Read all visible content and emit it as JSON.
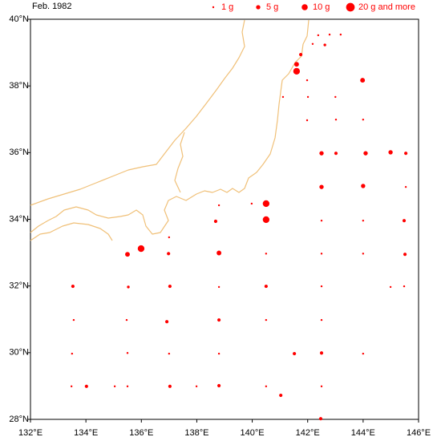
{
  "chart_data": {
    "type": "bubble-map",
    "title": "Feb. 1982",
    "color": "#ff0000",
    "legend": [
      {
        "value": 1,
        "label": "1 g"
      },
      {
        "value": 5,
        "label": "5 g"
      },
      {
        "value": 10,
        "label": "10 g"
      },
      {
        "value": 20,
        "label": "20 g and more"
      }
    ],
    "xlim": [
      132,
      146
    ],
    "ylim": [
      28,
      40
    ],
    "xticks": [
      {
        "value": 132,
        "label": "132°E"
      },
      {
        "value": 134,
        "label": "134°E"
      },
      {
        "value": 136,
        "label": "136°E"
      },
      {
        "value": 138,
        "label": "138°E"
      },
      {
        "value": 140,
        "label": "140°E"
      },
      {
        "value": 142,
        "label": "142°E"
      },
      {
        "value": 144,
        "label": "144°E"
      },
      {
        "value": 146,
        "label": "146°E"
      }
    ],
    "yticks": [
      {
        "value": 28,
        "label": "28°N"
      },
      {
        "value": 30,
        "label": "30°N"
      },
      {
        "value": 32,
        "label": "32°N"
      },
      {
        "value": 34,
        "label": "34°N"
      },
      {
        "value": 36,
        "label": "36°N"
      },
      {
        "value": 38,
        "label": "38°N"
      },
      {
        "value": 40,
        "label": "40°N"
      }
    ],
    "x": [
      142.18,
      142.38,
      142.62,
      142.79,
      143.19,
      141.6,
      141.75,
      141.6,
      143.98,
      141.98,
      141.11,
      142.01,
      143.0,
      141.98,
      143.02,
      144.0,
      142.5,
      143.02,
      144.09,
      144.99,
      145.54,
      142.5,
      144.0,
      145.54,
      138.8,
      139.98,
      140.5,
      138.68,
      140.5,
      142.5,
      144.0,
      145.48,
      137.0,
      135.5,
      135.99,
      136.98,
      138.8,
      140.5,
      142.5,
      144.0,
      145.51,
      133.53,
      135.53,
      137.03,
      138.8,
      140.5,
      142.5,
      144.99,
      145.48,
      133.56,
      135.47,
      136.92,
      138.8,
      140.5,
      142.5,
      133.5,
      135.5,
      137.0,
      138.8,
      141.52,
      142.5,
      144.0,
      133.48,
      134.02,
      135.04,
      135.5,
      137.03,
      137.99,
      138.8,
      140.5,
      142.5,
      141.03,
      142.47
    ],
    "y": [
      39.26,
      39.52,
      39.23,
      39.54,
      39.54,
      38.65,
      38.94,
      38.44,
      38.17,
      38.17,
      37.67,
      37.67,
      37.67,
      36.97,
      36.99,
      36.99,
      35.98,
      35.98,
      35.98,
      36.01,
      35.98,
      34.97,
      35.0,
      34.97,
      34.42,
      34.47,
      34.47,
      33.94,
      33.99,
      33.96,
      33.96,
      33.96,
      33.46,
      32.95,
      33.12,
      32.97,
      32.99,
      32.97,
      32.97,
      32.97,
      32.95,
      31.99,
      31.97,
      31.99,
      31.97,
      31.99,
      31.99,
      31.97,
      31.99,
      30.98,
      30.98,
      30.93,
      30.98,
      30.98,
      30.98,
      29.97,
      29.99,
      29.97,
      29.97,
      29.97,
      29.99,
      29.97,
      28.99,
      28.99,
      28.99,
      28.99,
      28.99,
      28.99,
      29.01,
      28.99,
      28.99,
      28.72,
      28.02
    ],
    "values": [
      1,
      1,
      2,
      1,
      1,
      6,
      3,
      12,
      6,
      1,
      1,
      1,
      1,
      1,
      1,
      1,
      5,
      3,
      5,
      5,
      3,
      5,
      5,
      1,
      1,
      1,
      12,
      3,
      12,
      1,
      1,
      3,
      1,
      6,
      12,
      3,
      6,
      1,
      1,
      1,
      3,
      3,
      2,
      3,
      1,
      3,
      1,
      1,
      1,
      1,
      1,
      3,
      3,
      1,
      1,
      1,
      1,
      1,
      1,
      3,
      3,
      1,
      1,
      3,
      1,
      1,
      3,
      1,
      3,
      1,
      1,
      3,
      3
    ]
  }
}
